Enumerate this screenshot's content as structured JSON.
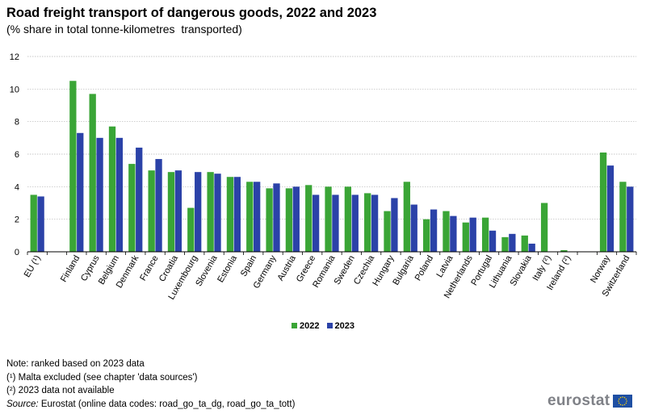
{
  "chart_data": {
    "type": "bar",
    "title": "Road freight transport of dangerous goods, 2022 and 2023",
    "subtitle": "(% share in total tonne-kilometres  transported)",
    "xlabel": "",
    "ylabel": "",
    "ylim": [
      0,
      12
    ],
    "yticks": [
      "0",
      "2",
      "4",
      "6",
      "8",
      "10",
      "12"
    ],
    "grid": true,
    "legend_position": "bottom",
    "categories": [
      "EU (¹)",
      "",
      "Finland",
      "Cyprus",
      "Belgium",
      "Denmark",
      "France",
      "Croatia",
      "Luxembourg",
      "Slovenia",
      "Estonia",
      "Spain",
      "Germany",
      "Austria",
      "Greece",
      "Romania",
      "Sweden",
      "Czechia",
      "Hungary",
      "Bulgaria",
      "Poland",
      "Latvia",
      "Netherlands",
      "Portugal",
      "Lithuania",
      "Slovakia",
      "Italy (²)",
      "Ireland (²)",
      "",
      "Norway",
      "Switzerland"
    ],
    "series": [
      {
        "name": "2022",
        "color": "#3aa536",
        "values": [
          3.5,
          null,
          10.5,
          9.7,
          7.7,
          5.4,
          5.0,
          4.9,
          2.7,
          4.9,
          4.6,
          4.3,
          3.9,
          3.9,
          4.1,
          4.0,
          4.0,
          3.6,
          2.5,
          4.3,
          2.0,
          2.5,
          1.8,
          2.1,
          0.9,
          1.0,
          3.0,
          0.1,
          null,
          6.1,
          4.3
        ]
      },
      {
        "name": "2023",
        "color": "#2b42a8",
        "values": [
          3.4,
          null,
          7.3,
          7.0,
          7.0,
          6.4,
          5.7,
          5.0,
          4.9,
          4.8,
          4.6,
          4.3,
          4.2,
          4.0,
          3.5,
          3.5,
          3.5,
          3.5,
          3.3,
          2.9,
          2.6,
          2.2,
          2.1,
          1.3,
          1.1,
          0.5,
          null,
          null,
          null,
          5.3,
          4.0
        ]
      }
    ]
  },
  "notes": {
    "line1": "Note: ranked based on 2023 data",
    "line2": "(¹) Malta excluded (see chapter 'data sources')",
    "line3": "(²) 2023 data not available",
    "source_label": "Source:",
    "source_text": " Eurostat (online data codes: road_go_ta_dg, road_go_ta_tott)"
  },
  "logo": {
    "text": "eurostat",
    "flag_color": "#1e4fa3",
    "star_color": "#ffd500"
  }
}
